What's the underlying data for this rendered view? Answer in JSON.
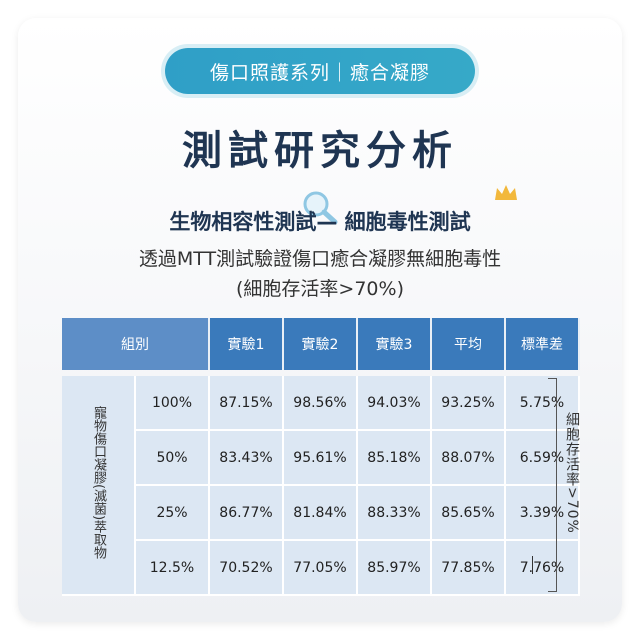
{
  "header": {
    "series_tag": "傷口照護系列｜癒合凝膠",
    "title": "測試研究分析",
    "subtitle": "生物相容性測試— 細胞毒性測試",
    "description_line1": "透過MTT測試驗證傷口癒合凝膠無細胞毒性",
    "description_line2": "(細胞存活率>70%)"
  },
  "table": {
    "headers": [
      "組別",
      "實驗1",
      "實驗2",
      "實驗3",
      "平均",
      "標準差"
    ],
    "group_label": "寵物傷口凝膠(滅菌)萃取物",
    "rows": [
      {
        "conc": "100%",
        "values": [
          "87.15%",
          "98.56%",
          "94.03%",
          "93.25%",
          "5.75%"
        ]
      },
      {
        "conc": "50%",
        "values": [
          "83.43%",
          "95.61%",
          "85.18%",
          "88.07%",
          "6.59%"
        ]
      },
      {
        "conc": "25%",
        "values": [
          "86.77%",
          "81.84%",
          "88.33%",
          "85.65%",
          "3.39%"
        ]
      },
      {
        "conc": "12.5%",
        "values": [
          "70.52%",
          "77.05%",
          "85.97%",
          "77.85%",
          "7.76%"
        ]
      }
    ]
  },
  "note": "細胞存活率>70%",
  "icons": {
    "magnifier": "magnifier-icon",
    "crown": "crown-icon"
  },
  "colors": {
    "accent": "#2f9fc7",
    "header_blue": "#3a7abb",
    "cell_bg": "#dce7f3",
    "title": "#1f3552"
  }
}
